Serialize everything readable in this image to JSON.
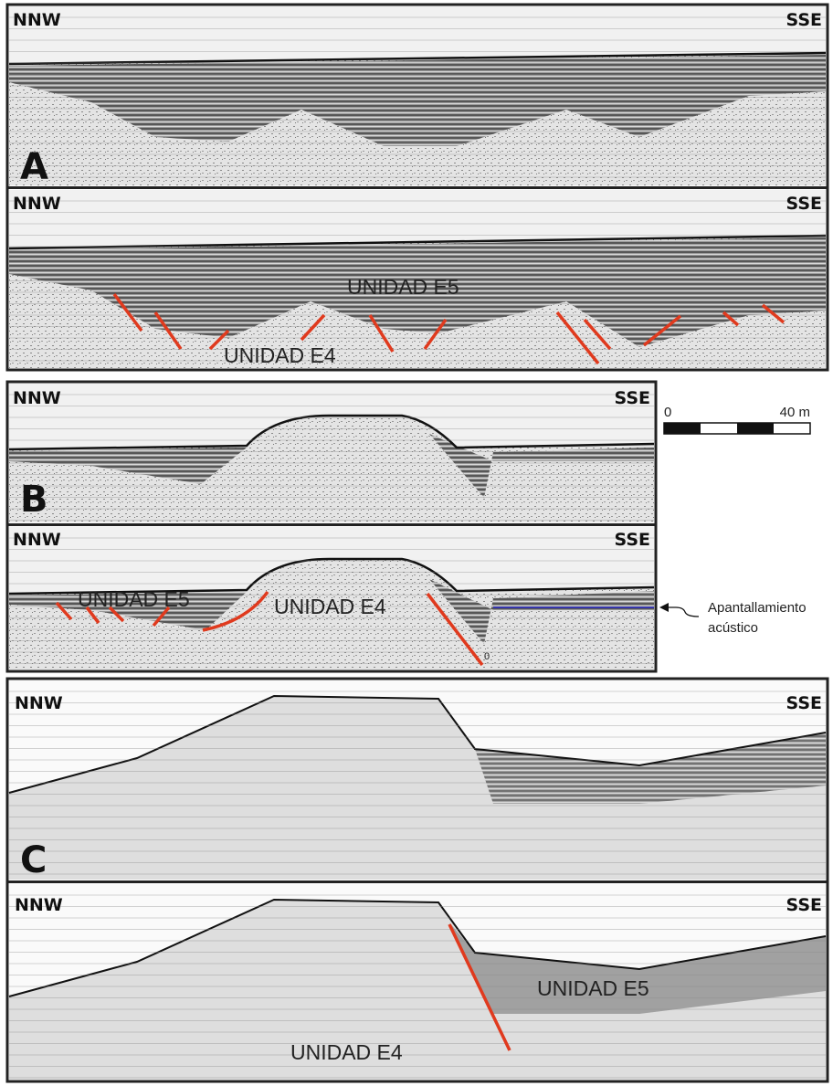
{
  "panels": [
    {
      "label": "A",
      "profiles": [
        {
          "left": "NNW",
          "right": "SSE"
        },
        {
          "left": "NNW",
          "right": "SSE",
          "units": [
            "UNIDAD E5",
            "UNIDAD E4"
          ]
        }
      ]
    },
    {
      "label": "B",
      "profiles": [
        {
          "left": "NNW",
          "right": "SSE"
        },
        {
          "left": "NNW",
          "right": "SSE",
          "units": [
            "UNIDAD E5",
            "UNIDAD E4"
          ],
          "marker": "0"
        }
      ]
    },
    {
      "label": "C",
      "profiles": [
        {
          "left": "NNW",
          "right": "SSE"
        },
        {
          "left": "NNW",
          "right": "SSE",
          "units": [
            "UNIDAD E5",
            "UNIDAD E4"
          ]
        }
      ]
    }
  ],
  "scale_bar": {
    "start": "0",
    "end": "40 m"
  },
  "annotation": [
    "Apantallamiento",
    "acústico"
  ]
}
